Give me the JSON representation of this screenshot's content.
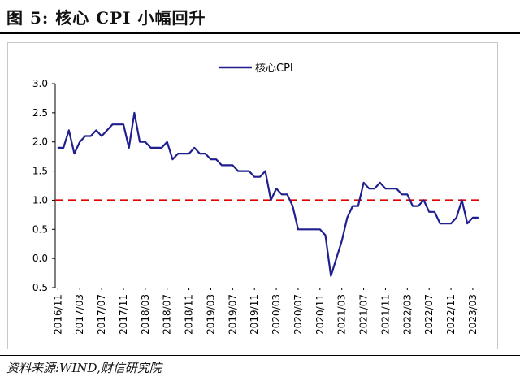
{
  "figure": {
    "title": "图 5:  核心 CPI 小幅回升",
    "source": "资料来源:WIND,财信研究院"
  },
  "colors": {
    "series_line": "#1f1f8f",
    "reference_line": "#e00000",
    "axis": "#000000"
  },
  "chart_data": {
    "type": "line",
    "title": "",
    "xlabel": "",
    "ylabel": "",
    "ylim": [
      -0.5,
      3.0
    ],
    "yticks": [
      -0.5,
      0.0,
      0.5,
      1.0,
      1.5,
      2.0,
      2.5,
      3.0
    ],
    "ytick_labels": [
      "-0.5",
      "0.0",
      "0.5",
      "1.0",
      "1.5",
      "2.0",
      "2.5",
      "3.0"
    ],
    "xtick_labels": [
      "2016/11",
      "2017/03",
      "2017/07",
      "2017/11",
      "2018/03",
      "2018/07",
      "2018/11",
      "2019/03",
      "2019/07",
      "2019/11",
      "2020/03",
      "2020/07",
      "2020/11",
      "2021/03",
      "2021/07",
      "2021/11",
      "2022/03",
      "2022/07",
      "2022/11",
      "2023/03"
    ],
    "legend": {
      "position": "top-center",
      "entries": [
        "核心CPI"
      ]
    },
    "reference_line": {
      "y": 1.0,
      "style": "dashed"
    },
    "series": [
      {
        "name": "核心CPI",
        "x": [
          "2016/11",
          "2016/12",
          "2017/01",
          "2017/02",
          "2017/03",
          "2017/04",
          "2017/05",
          "2017/06",
          "2017/07",
          "2017/08",
          "2017/09",
          "2017/10",
          "2017/11",
          "2017/12",
          "2018/01",
          "2018/02",
          "2018/03",
          "2018/04",
          "2018/05",
          "2018/06",
          "2018/07",
          "2018/08",
          "2018/09",
          "2018/10",
          "2018/11",
          "2018/12",
          "2019/01",
          "2019/02",
          "2019/03",
          "2019/04",
          "2019/05",
          "2019/06",
          "2019/07",
          "2019/08",
          "2019/09",
          "2019/10",
          "2019/11",
          "2019/12",
          "2020/01",
          "2020/02",
          "2020/03",
          "2020/04",
          "2020/05",
          "2020/06",
          "2020/07",
          "2020/08",
          "2020/09",
          "2020/10",
          "2020/11",
          "2020/12",
          "2021/01",
          "2021/02",
          "2021/03",
          "2021/04",
          "2021/05",
          "2021/06",
          "2021/07",
          "2021/08",
          "2021/09",
          "2021/10",
          "2021/11",
          "2021/12",
          "2022/01",
          "2022/02",
          "2022/03",
          "2022/04",
          "2022/05",
          "2022/06",
          "2022/07",
          "2022/08",
          "2022/09",
          "2022/10",
          "2022/11",
          "2022/12",
          "2023/01",
          "2023/02",
          "2023/03",
          "2023/04"
        ],
        "values": [
          1.9,
          1.9,
          2.2,
          1.8,
          2.0,
          2.1,
          2.1,
          2.2,
          2.1,
          2.2,
          2.3,
          2.3,
          2.3,
          1.9,
          2.5,
          2.0,
          2.0,
          1.9,
          1.9,
          1.9,
          2.0,
          1.7,
          1.8,
          1.8,
          1.8,
          1.9,
          1.8,
          1.8,
          1.7,
          1.7,
          1.6,
          1.6,
          1.6,
          1.5,
          1.5,
          1.5,
          1.4,
          1.4,
          1.5,
          1.0,
          1.2,
          1.1,
          1.1,
          0.9,
          0.5,
          0.5,
          0.5,
          0.5,
          0.5,
          0.4,
          -0.3,
          0.0,
          0.3,
          0.7,
          0.9,
          0.9,
          1.3,
          1.2,
          1.2,
          1.3,
          1.2,
          1.2,
          1.2,
          1.1,
          1.1,
          0.9,
          0.9,
          1.0,
          0.8,
          0.8,
          0.6,
          0.6,
          0.6,
          0.7,
          1.0,
          0.6,
          0.7,
          0.7
        ]
      }
    ]
  }
}
